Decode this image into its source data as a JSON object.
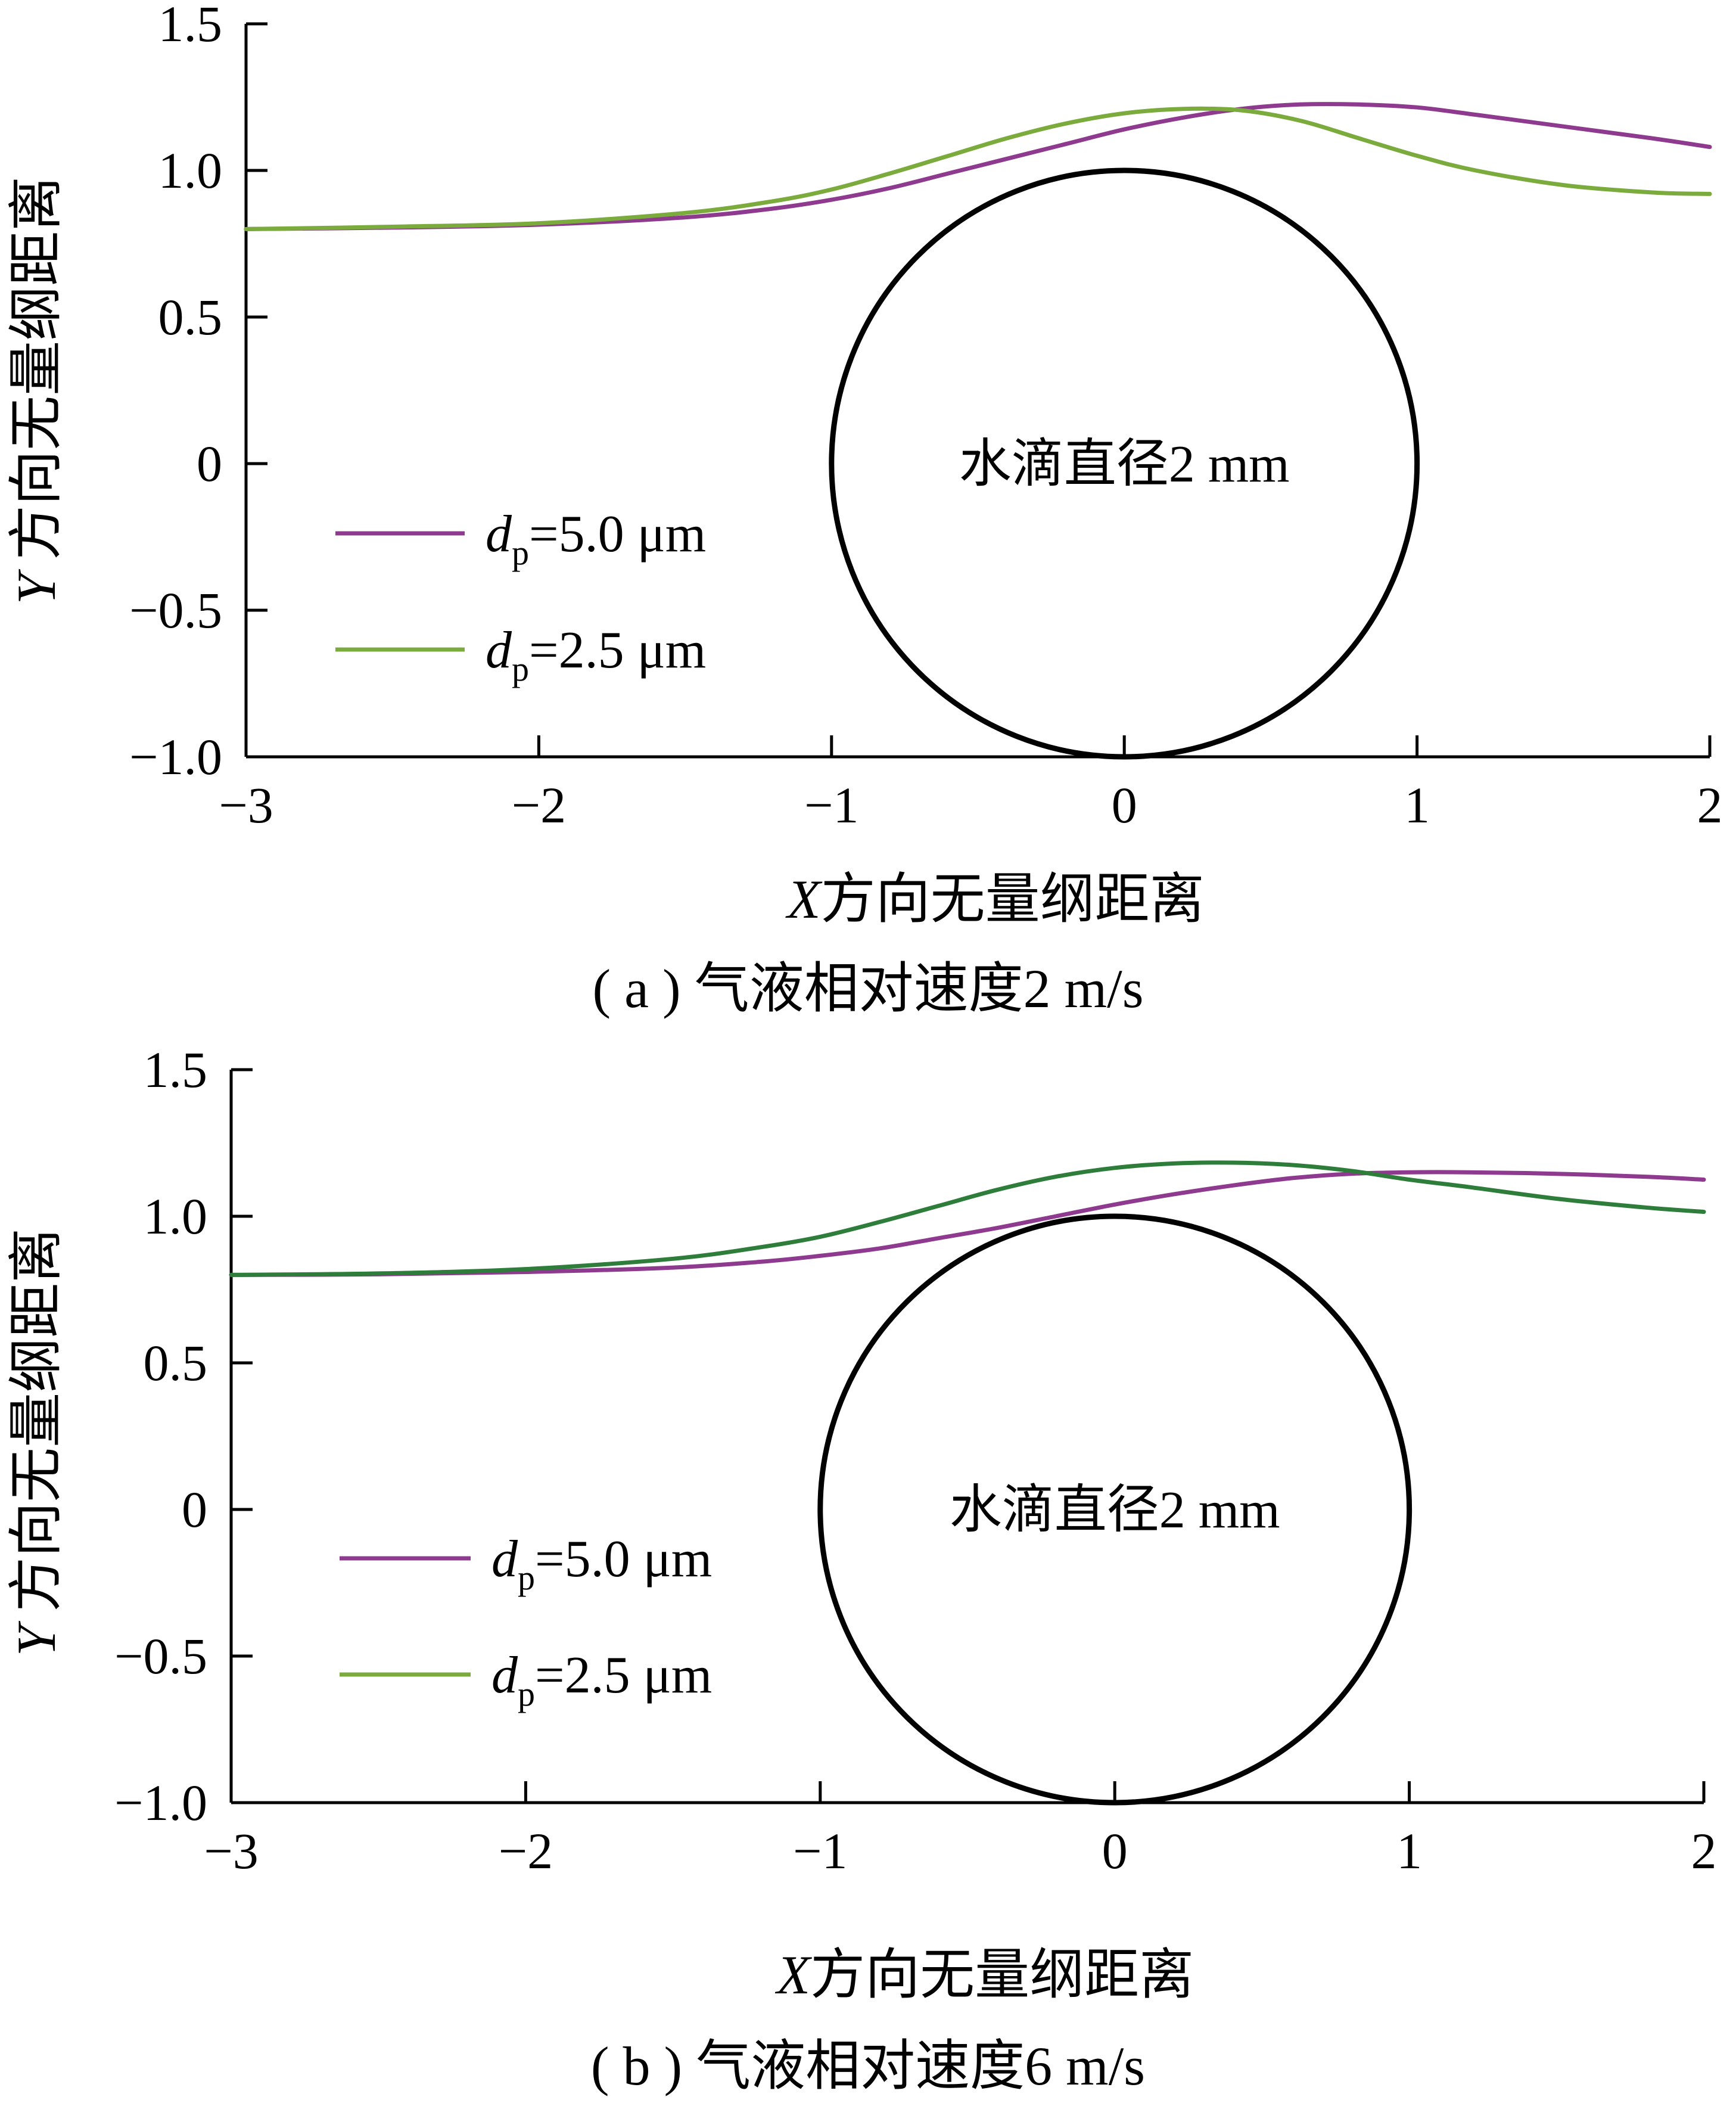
{
  "chart_data": [
    {
      "type": "line",
      "caption": "( a ) 气液相对速度2 m/s",
      "xlabel": {
        "italic": "X",
        "rest": "方向无量纲距离"
      },
      "ylabel": {
        "italic": "Y",
        "rest": " 方向无量纲距离"
      },
      "xlim": [
        -3,
        2
      ],
      "ylim": [
        -1.0,
        1.5
      ],
      "xticks": [
        -3,
        -2,
        -1,
        0,
        1,
        2
      ],
      "xtick_labels": [
        "−3",
        "−2",
        "−1",
        "0",
        "1",
        "2"
      ],
      "yticks": [
        -1.0,
        -0.5,
        0,
        0.5,
        1.0,
        1.5
      ],
      "ytick_labels": [
        "−1.0",
        "−0.5",
        "0",
        "0.5",
        "1.0",
        "1.5"
      ],
      "grid": false,
      "legend_position": "lower-left",
      "droplet": {
        "center_x": 0,
        "center_y": 0,
        "radius": 1,
        "label": "水滴直径2 mm"
      },
      "series": [
        {
          "name": "dp=5.0 μm",
          "legend_d": "d",
          "legend_sub": "p",
          "legend_rest": "=5.0 μm",
          "color": "#8e3a8e",
          "x": [
            -3.0,
            -2.5,
            -2.0,
            -1.5,
            -1.2,
            -1.0,
            -0.8,
            -0.6,
            -0.4,
            -0.2,
            0.0,
            0.2,
            0.4,
            0.6,
            0.8,
            1.0,
            1.2,
            1.5,
            1.8,
            2.0
          ],
          "y": [
            0.8,
            0.805,
            0.815,
            0.84,
            0.87,
            0.9,
            0.94,
            0.99,
            1.04,
            1.09,
            1.14,
            1.18,
            1.21,
            1.225,
            1.225,
            1.215,
            1.19,
            1.15,
            1.11,
            1.08
          ]
        },
        {
          "name": "dp=2.5 μm",
          "legend_d": "d",
          "legend_sub": "p",
          "legend_rest": "=2.5 μm",
          "color": "#7aab3c",
          "x": [
            -3.0,
            -2.5,
            -2.0,
            -1.5,
            -1.2,
            -1.0,
            -0.8,
            -0.6,
            -0.4,
            -0.2,
            0.0,
            0.2,
            0.4,
            0.6,
            0.8,
            1.0,
            1.2,
            1.5,
            1.8,
            2.0
          ],
          "y": [
            0.8,
            0.808,
            0.82,
            0.855,
            0.895,
            0.935,
            0.99,
            1.05,
            1.11,
            1.16,
            1.195,
            1.21,
            1.205,
            1.17,
            1.11,
            1.05,
            1.0,
            0.95,
            0.925,
            0.92
          ]
        }
      ]
    },
    {
      "type": "line",
      "caption": "( b ) 气液相对速度6 m/s",
      "xlabel": {
        "italic": "X",
        "rest": "方向无量纲距离"
      },
      "ylabel": {
        "italic": "Y",
        "rest": " 方向无量纲距离"
      },
      "xlim": [
        -3,
        2
      ],
      "ylim": [
        -1.0,
        1.5
      ],
      "xticks": [
        -3,
        -2,
        -1,
        0,
        1,
        2
      ],
      "xtick_labels": [
        "−3",
        "−2",
        "−1",
        "0",
        "1",
        "2"
      ],
      "yticks": [
        -1.0,
        -0.5,
        0,
        0.5,
        1.0,
        1.5
      ],
      "ytick_labels": [
        "−1.0",
        "−0.5",
        "0",
        "0.5",
        "1.0",
        "1.5"
      ],
      "grid": false,
      "legend_position": "lower-left",
      "droplet": {
        "center_x": 0,
        "center_y": 0,
        "radius": 1,
        "label": "水滴直径2 mm"
      },
      "series": [
        {
          "name": "dp=5.0 μm",
          "legend_d": "d",
          "legend_sub": "p",
          "legend_rest": "=5.0 μm",
          "color": "#8e3a8e",
          "x": [
            -3.0,
            -2.5,
            -2.0,
            -1.5,
            -1.2,
            -1.0,
            -0.8,
            -0.6,
            -0.4,
            -0.2,
            0.0,
            0.2,
            0.4,
            0.6,
            0.8,
            1.0,
            1.2,
            1.5,
            1.8,
            2.0
          ],
          "y": [
            0.8,
            0.802,
            0.81,
            0.825,
            0.845,
            0.865,
            0.89,
            0.925,
            0.96,
            1.0,
            1.04,
            1.075,
            1.105,
            1.13,
            1.145,
            1.15,
            1.15,
            1.145,
            1.135,
            1.125
          ]
        },
        {
          "name": "dp=2.5 μm",
          "legend_d": "d",
          "legend_sub": "p",
          "legend_rest": "=2.5 μm",
          "color": "#2e7d3a",
          "legend_color": "#7aab3c",
          "x": [
            -3.0,
            -2.5,
            -2.0,
            -1.5,
            -1.2,
            -1.0,
            -0.8,
            -0.6,
            -0.4,
            -0.2,
            0.0,
            0.2,
            0.4,
            0.6,
            0.8,
            1.0,
            1.2,
            1.5,
            1.8,
            2.0
          ],
          "y": [
            0.8,
            0.805,
            0.82,
            0.855,
            0.895,
            0.93,
            0.98,
            1.035,
            1.09,
            1.135,
            1.165,
            1.18,
            1.183,
            1.175,
            1.155,
            1.125,
            1.1,
            1.06,
            1.03,
            1.015
          ]
        }
      ]
    }
  ]
}
